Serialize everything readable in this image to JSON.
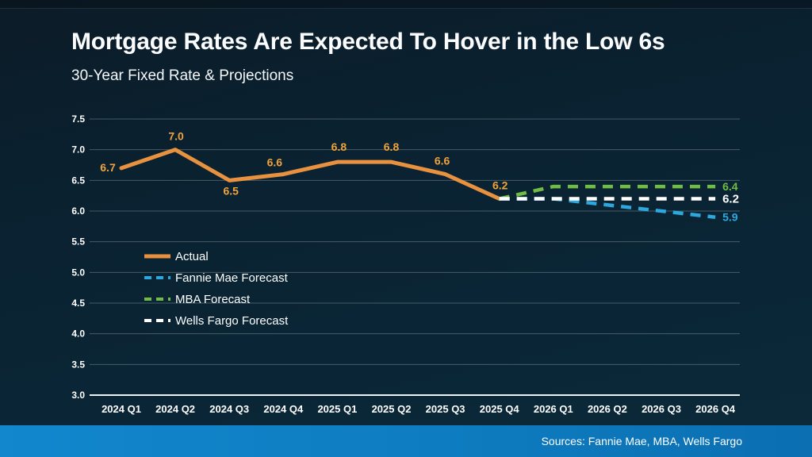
{
  "slide": {
    "title": "Mortgage Rates Are Expected To Hover in the Low 6s",
    "subtitle": "30-Year Fixed Rate & Projections",
    "source_note": "Sources: Fannie Mae, MBA, Wells Fargo"
  },
  "colors": {
    "actual": "#E8923F",
    "actual_label": "#F0A23C",
    "fannie": "#2CA8DF",
    "mba": "#70BD44",
    "wells": "#FFFFFF",
    "gridline": "rgba(255,255,255,0.25)",
    "axis_line": "#EDF2F5",
    "axis_text": "#FFFFFF",
    "band_left": "#1287CD",
    "band_right": "#0B6FB2"
  },
  "chart_data": {
    "type": "line",
    "title": "30-Year Fixed Rate & Projections",
    "xlabel": "",
    "ylabel": "",
    "ylim": [
      3.0,
      7.5
    ],
    "ytick_step": 0.5,
    "grid": true,
    "legend_position": "left-middle",
    "categories": [
      "2024 Q1",
      "2024 Q2",
      "2024 Q3",
      "2024 Q4",
      "2025 Q1",
      "2025 Q2",
      "2025 Q3",
      "2025 Q4",
      "2026 Q1",
      "2026 Q2",
      "2026 Q3",
      "2026 Q4"
    ],
    "series": [
      {
        "name": "Actual",
        "style": "solid",
        "color_key": "actual",
        "values": [
          6.7,
          7.0,
          6.5,
          6.6,
          6.8,
          6.8,
          6.6,
          6.2,
          null,
          null,
          null,
          null
        ],
        "point_labels": [
          "6.7",
          "7.0",
          "6.5",
          "6.6",
          "6.8",
          "6.8",
          "6.6",
          "6.2",
          null,
          null,
          null,
          null
        ]
      },
      {
        "name": "Fannie Mae Forecast",
        "style": "dashed",
        "color_key": "fannie",
        "values": [
          null,
          null,
          null,
          null,
          null,
          null,
          null,
          6.2,
          6.2,
          6.1,
          6.0,
          5.9
        ],
        "end_label": "5.9"
      },
      {
        "name": "MBA Forecast",
        "style": "dashed",
        "color_key": "mba",
        "values": [
          null,
          null,
          null,
          null,
          null,
          null,
          null,
          6.2,
          6.4,
          6.4,
          6.4,
          6.4
        ],
        "end_label": "6.4"
      },
      {
        "name": "Wells Fargo Forecast",
        "style": "dashed",
        "color_key": "wells",
        "values": [
          null,
          null,
          null,
          null,
          null,
          null,
          null,
          6.2,
          6.2,
          6.2,
          6.2,
          6.2
        ],
        "end_label": "6.2"
      }
    ]
  }
}
